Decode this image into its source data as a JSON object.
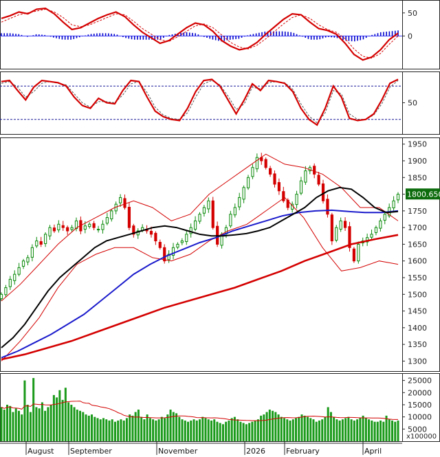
{
  "chart_data": [
    {
      "panel": "macd",
      "type": "line",
      "y_ticks": [
        "50",
        "0"
      ],
      "series": [
        {
          "color": "#d40000",
          "values": [
            38,
            44,
            52,
            48,
            58,
            60,
            48,
            30,
            14,
            18,
            28,
            38,
            46,
            52,
            42,
            24,
            8,
            -4,
            -16,
            -10,
            4,
            18,
            28,
            24,
            10,
            -10,
            -22,
            -30,
            -26,
            -14,
            4,
            20,
            36,
            48,
            46,
            30,
            16,
            12,
            4,
            -16,
            -40,
            -52,
            -46,
            -30,
            -8,
            6
          ]
        },
        {
          "color": "#d40000",
          "dash": true,
          "values": [
            30,
            38,
            46,
            50,
            54,
            58,
            52,
            40,
            24,
            20,
            24,
            32,
            40,
            48,
            46,
            32,
            16,
            4,
            -8,
            -12,
            -2,
            10,
            22,
            26,
            18,
            2,
            -14,
            -24,
            -28,
            -20,
            -6,
            10,
            26,
            40,
            46,
            38,
            24,
            14,
            8,
            -6,
            -28,
            -44,
            -48,
            -38,
            -18,
            0
          ]
        },
        {
          "color": "#0000cc",
          "kind": "histogram",
          "values": [
            6,
            6,
            4,
            -2,
            4,
            2,
            -4,
            -8,
            -8,
            -2,
            4,
            6,
            6,
            4,
            -4,
            -8,
            -8,
            -8,
            -8,
            2,
            6,
            8,
            6,
            -2,
            -8,
            -12,
            -8,
            -6,
            2,
            6,
            10,
            10,
            10,
            8,
            0,
            -8,
            -8,
            -2,
            -4,
            -10,
            -12,
            -8,
            2,
            8,
            10,
            12
          ]
        }
      ]
    },
    {
      "panel": "stochastic",
      "type": "line",
      "y_ticks": [
        "50"
      ],
      "reference_lines": [
        80,
        20
      ],
      "series": [
        {
          "color": "#d40000",
          "values": [
            88,
            90,
            72,
            55,
            78,
            90,
            88,
            86,
            80,
            60,
            45,
            40,
            58,
            50,
            48,
            72,
            90,
            88,
            60,
            35,
            25,
            20,
            18,
            40,
            70,
            90,
            92,
            80,
            55,
            30,
            55,
            84,
            72,
            90,
            88,
            85,
            70,
            40,
            20,
            10,
            40,
            80,
            60,
            22,
            18,
            20,
            30,
            55,
            85,
            92
          ]
        },
        {
          "color": "#555555",
          "dash": true,
          "values": [
            85,
            88,
            78,
            60,
            70,
            85,
            88,
            85,
            82,
            66,
            50,
            42,
            52,
            52,
            50,
            64,
            84,
            88,
            68,
            42,
            28,
            22,
            20,
            32,
            60,
            84,
            90,
            82,
            62,
            38,
            48,
            78,
            75,
            86,
            88,
            86,
            74,
            48,
            26,
            14,
            32,
            72,
            66,
            30,
            20,
            20,
            28,
            48,
            78,
            90
          ]
        }
      ]
    },
    {
      "panel": "price",
      "type": "line",
      "x_ticks": [
        "August",
        "September",
        "November",
        "2026",
        "February",
        "April"
      ],
      "y_ticks": [
        "1950",
        "1900",
        "1850",
        "1800",
        "1750",
        "1700",
        "1650",
        "1600",
        "1550",
        "1500",
        "1450",
        "1400",
        "1350",
        "1300"
      ],
      "last_value_label": "1800.650",
      "ylim": [
        1270,
        1970
      ],
      "candles_close": [
        1500,
        1520,
        1545,
        1560,
        1580,
        1600,
        1610,
        1640,
        1660,
        1650,
        1680,
        1700,
        1690,
        1710,
        1700,
        1690,
        1700,
        1720,
        1690,
        1705,
        1710,
        1700,
        1695,
        1710,
        1730,
        1750,
        1770,
        1790,
        1760,
        1700,
        1680,
        1690,
        1700,
        1690,
        1680,
        1660,
        1640,
        1600,
        1620,
        1640,
        1650,
        1660,
        1680,
        1700,
        1720,
        1740,
        1760,
        1780,
        1700,
        1650,
        1680,
        1700,
        1740,
        1760,
        1790,
        1820,
        1850,
        1880,
        1910,
        1900,
        1880,
        1860,
        1830,
        1810,
        1780,
        1760,
        1770,
        1800,
        1840,
        1870,
        1880,
        1860,
        1830,
        1780,
        1740,
        1660,
        1700,
        1720,
        1700,
        1640,
        1600,
        1650,
        1660,
        1670,
        1680,
        1700,
        1720,
        1740,
        1760,
        1780,
        1800
      ],
      "series": [
        {
          "color": "#000000",
          "name": "",
          "values": [
            1340,
            1370,
            1410,
            1460,
            1510,
            1550,
            1580,
            1610,
            1640,
            1660,
            1670,
            1680,
            1690,
            1700,
            1705,
            1700,
            1690,
            1680,
            1675,
            1675,
            1678,
            1682,
            1690,
            1700,
            1720,
            1740,
            1760,
            1790,
            1810,
            1820,
            1815,
            1790,
            1760,
            1745,
            1748
          ]
        },
        {
          "color": "#1a1acc",
          "name": "",
          "values": [
            1310,
            1330,
            1355,
            1380,
            1410,
            1440,
            1480,
            1520,
            1560,
            1590,
            1615,
            1635,
            1655,
            1670,
            1690,
            1705,
            1720,
            1735,
            1745,
            1750,
            1752,
            1748,
            1745,
            1745,
            1750
          ]
        },
        {
          "color": "#d40000",
          "name": "",
          "values": [
            1305,
            1320,
            1340,
            1360,
            1385,
            1410,
            1435,
            1460,
            1480,
            1500,
            1520,
            1545,
            1570,
            1600,
            1625,
            1650,
            1665,
            1678
          ]
        },
        {
          "color": "#d40000",
          "name": "",
          "thin": true,
          "values": [
            1480,
            1530,
            1590,
            1650,
            1700,
            1730,
            1760,
            1780,
            1760,
            1720,
            1740,
            1800,
            1840,
            1880,
            1920,
            1890,
            1880,
            1860,
            1820,
            1760,
            1760,
            1720
          ]
        },
        {
          "color": "#d40000",
          "name": "",
          "thin": true,
          "values": [
            1300,
            1360,
            1430,
            1520,
            1590,
            1620,
            1640,
            1640,
            1610,
            1600,
            1620,
            1660,
            1690,
            1710,
            1750,
            1790,
            1730,
            1640,
            1570,
            1580,
            1600,
            1590
          ]
        }
      ]
    },
    {
      "panel": "volume",
      "type": "bar",
      "y_ticks": [
        "25000",
        "20000",
        "15000",
        "10000",
        "5000"
      ],
      "unit_label": "x100000",
      "ylim": [
        0,
        28000
      ],
      "values": [
        14000,
        13000,
        15000,
        14500,
        12000,
        13500,
        12500,
        11000,
        25000,
        15000,
        12000,
        26000,
        14000,
        13500,
        16000,
        12500,
        14000,
        15000,
        19000,
        18000,
        21000,
        17000,
        22000,
        16000,
        15000,
        14000,
        13000,
        12500,
        12000,
        11000,
        10500,
        11000,
        10000,
        9500,
        9000,
        9500,
        9000,
        8500,
        9000,
        8000,
        8500,
        9000,
        8500,
        9500,
        11000,
        10500,
        12000,
        13000,
        10000,
        9000,
        11000,
        9500,
        9000,
        8500,
        9000,
        10000,
        9500,
        11000,
        13000,
        12000,
        11500,
        10000,
        9000,
        8500,
        8000,
        8500,
        9000,
        8500,
        9000,
        10000,
        9500,
        9000,
        8500,
        9000,
        8000,
        7500,
        7000,
        8000,
        8500,
        9500,
        10000,
        9000,
        8000,
        7500,
        7000,
        7500,
        8000,
        8500,
        9000,
        10500,
        11000,
        12000,
        13000,
        12500,
        12000,
        11000,
        10000,
        9500,
        9000,
        8500,
        9000,
        9500,
        10000,
        11000,
        10500,
        10000,
        9500,
        9000,
        8000,
        8500,
        9000,
        10000,
        14000,
        12000,
        10000,
        9000,
        8500,
        9000,
        9500,
        10000,
        9000,
        8500,
        9000,
        9500,
        10500,
        9500,
        9000,
        8500,
        8000,
        8000,
        8500,
        8000,
        10500,
        9000,
        8500,
        8000,
        8500
      ]
    }
  ]
}
